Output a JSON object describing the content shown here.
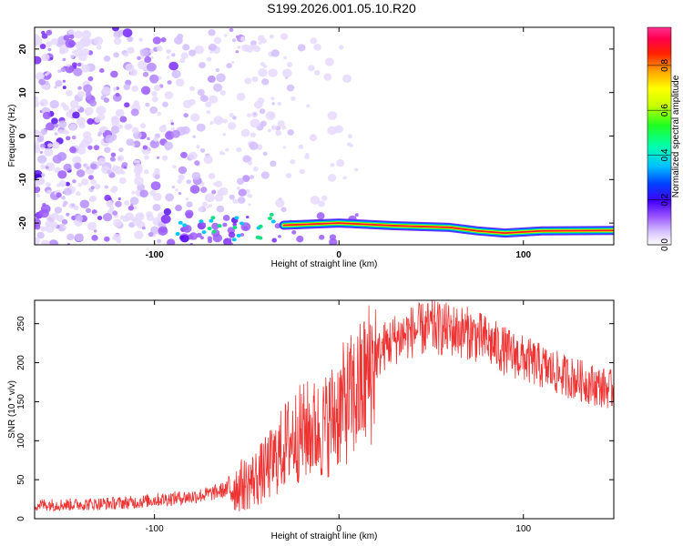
{
  "title": "S199.2026.001.05.10.R20",
  "chart_data": [
    {
      "type": "heatmap",
      "xlabel": "Height of straight line (km)",
      "ylabel": "Frequency (Hz)",
      "xlim": [
        -165,
        149
      ],
      "ylim": [
        -25,
        25
      ],
      "xticks": [
        -100,
        0,
        100
      ],
      "yticks": [
        -20,
        -10,
        0,
        10,
        20
      ],
      "colorbar": {
        "label": "Normalized spectral amplitude",
        "range": [
          0,
          0.97
        ],
        "ticks": [
          0.0,
          0.2,
          0.4,
          0.6,
          0.8
        ],
        "colors": [
          "#ffffff",
          "#c89bff",
          "#7d2bff",
          "#3a00ff",
          "#0050ff",
          "#00c8ff",
          "#00ff90",
          "#7dff00",
          "#ffff00",
          "#ff9000",
          "#ff0000",
          "#ff0080"
        ]
      },
      "signal_band": {
        "description_points": [
          {
            "x": -30,
            "y": -20.5
          },
          {
            "x": 0,
            "y": -20.0
          },
          {
            "x": 30,
            "y": -20.6
          },
          {
            "x": 60,
            "y": -21.0
          },
          {
            "x": 75,
            "y": -21.8
          },
          {
            "x": 90,
            "y": -22.3
          },
          {
            "x": 110,
            "y": -21.8
          },
          {
            "x": 149,
            "y": -21.7
          }
        ]
      },
      "noise_region": {
        "x_range": [
          -165,
          -20
        ],
        "y_range": [
          -25,
          25
        ]
      }
    },
    {
      "type": "line",
      "xlabel": "Height of straight line (km)",
      "ylabel": "SNR (10 * v/v)",
      "xlim": [
        -165,
        149
      ],
      "ylim": [
        0,
        280
      ],
      "xticks": [
        -100,
        0,
        100
      ],
      "yticks": [
        0,
        50,
        100,
        150,
        200,
        250
      ],
      "color": "#ee3333",
      "series": [
        {
          "x": [
            -165,
            -150,
            -130,
            -110,
            -100,
            -90,
            -80,
            -70,
            -60,
            -50,
            -45,
            -40,
            -35,
            -30,
            -25,
            -20,
            -15,
            -10,
            -5,
            0,
            5,
            10,
            15,
            20,
            25,
            30,
            40,
            50,
            60,
            70,
            80,
            90,
            100,
            110,
            120,
            130,
            140,
            149
          ],
          "y": [
            18,
            18,
            19,
            21,
            24,
            26,
            28,
            32,
            38,
            45,
            52,
            62,
            75,
            92,
            105,
            110,
            115,
            112,
            125,
            140,
            152,
            160,
            180,
            205,
            222,
            230,
            240,
            245,
            242,
            238,
            228,
            215,
            205,
            195,
            185,
            178,
            170,
            165
          ]
        }
      ]
    }
  ]
}
